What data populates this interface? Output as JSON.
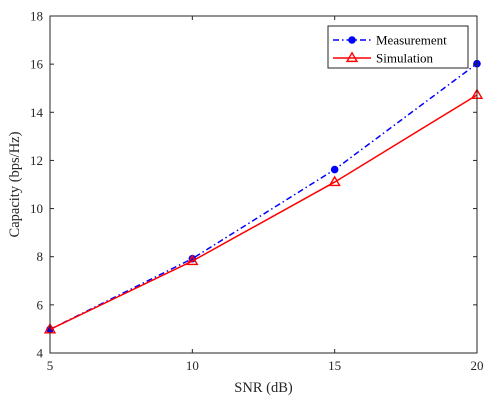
{
  "chart_data": {
    "type": "line",
    "title": "",
    "xlabel": "SNR (dB)",
    "ylabel": "Capacity (bps/Hz)",
    "xlim": [
      5,
      20
    ],
    "ylim": [
      4,
      18
    ],
    "x_ticks": [
      5,
      10,
      15,
      20
    ],
    "y_ticks": [
      4,
      6,
      8,
      10,
      12,
      14,
      16,
      18
    ],
    "grid": false,
    "legend_position": "top-right",
    "x": [
      5,
      10,
      15,
      20
    ],
    "series": [
      {
        "name": "Measurement",
        "values": [
          4.98,
          7.92,
          11.62,
          16.02
        ],
        "color": "#0000ff",
        "line_style": "dash-dot",
        "marker": "filled-circle"
      },
      {
        "name": "Simulation",
        "values": [
          4.98,
          7.82,
          11.1,
          14.72
        ],
        "color": "#ff0000",
        "line_style": "solid",
        "marker": "open-triangle"
      }
    ]
  }
}
